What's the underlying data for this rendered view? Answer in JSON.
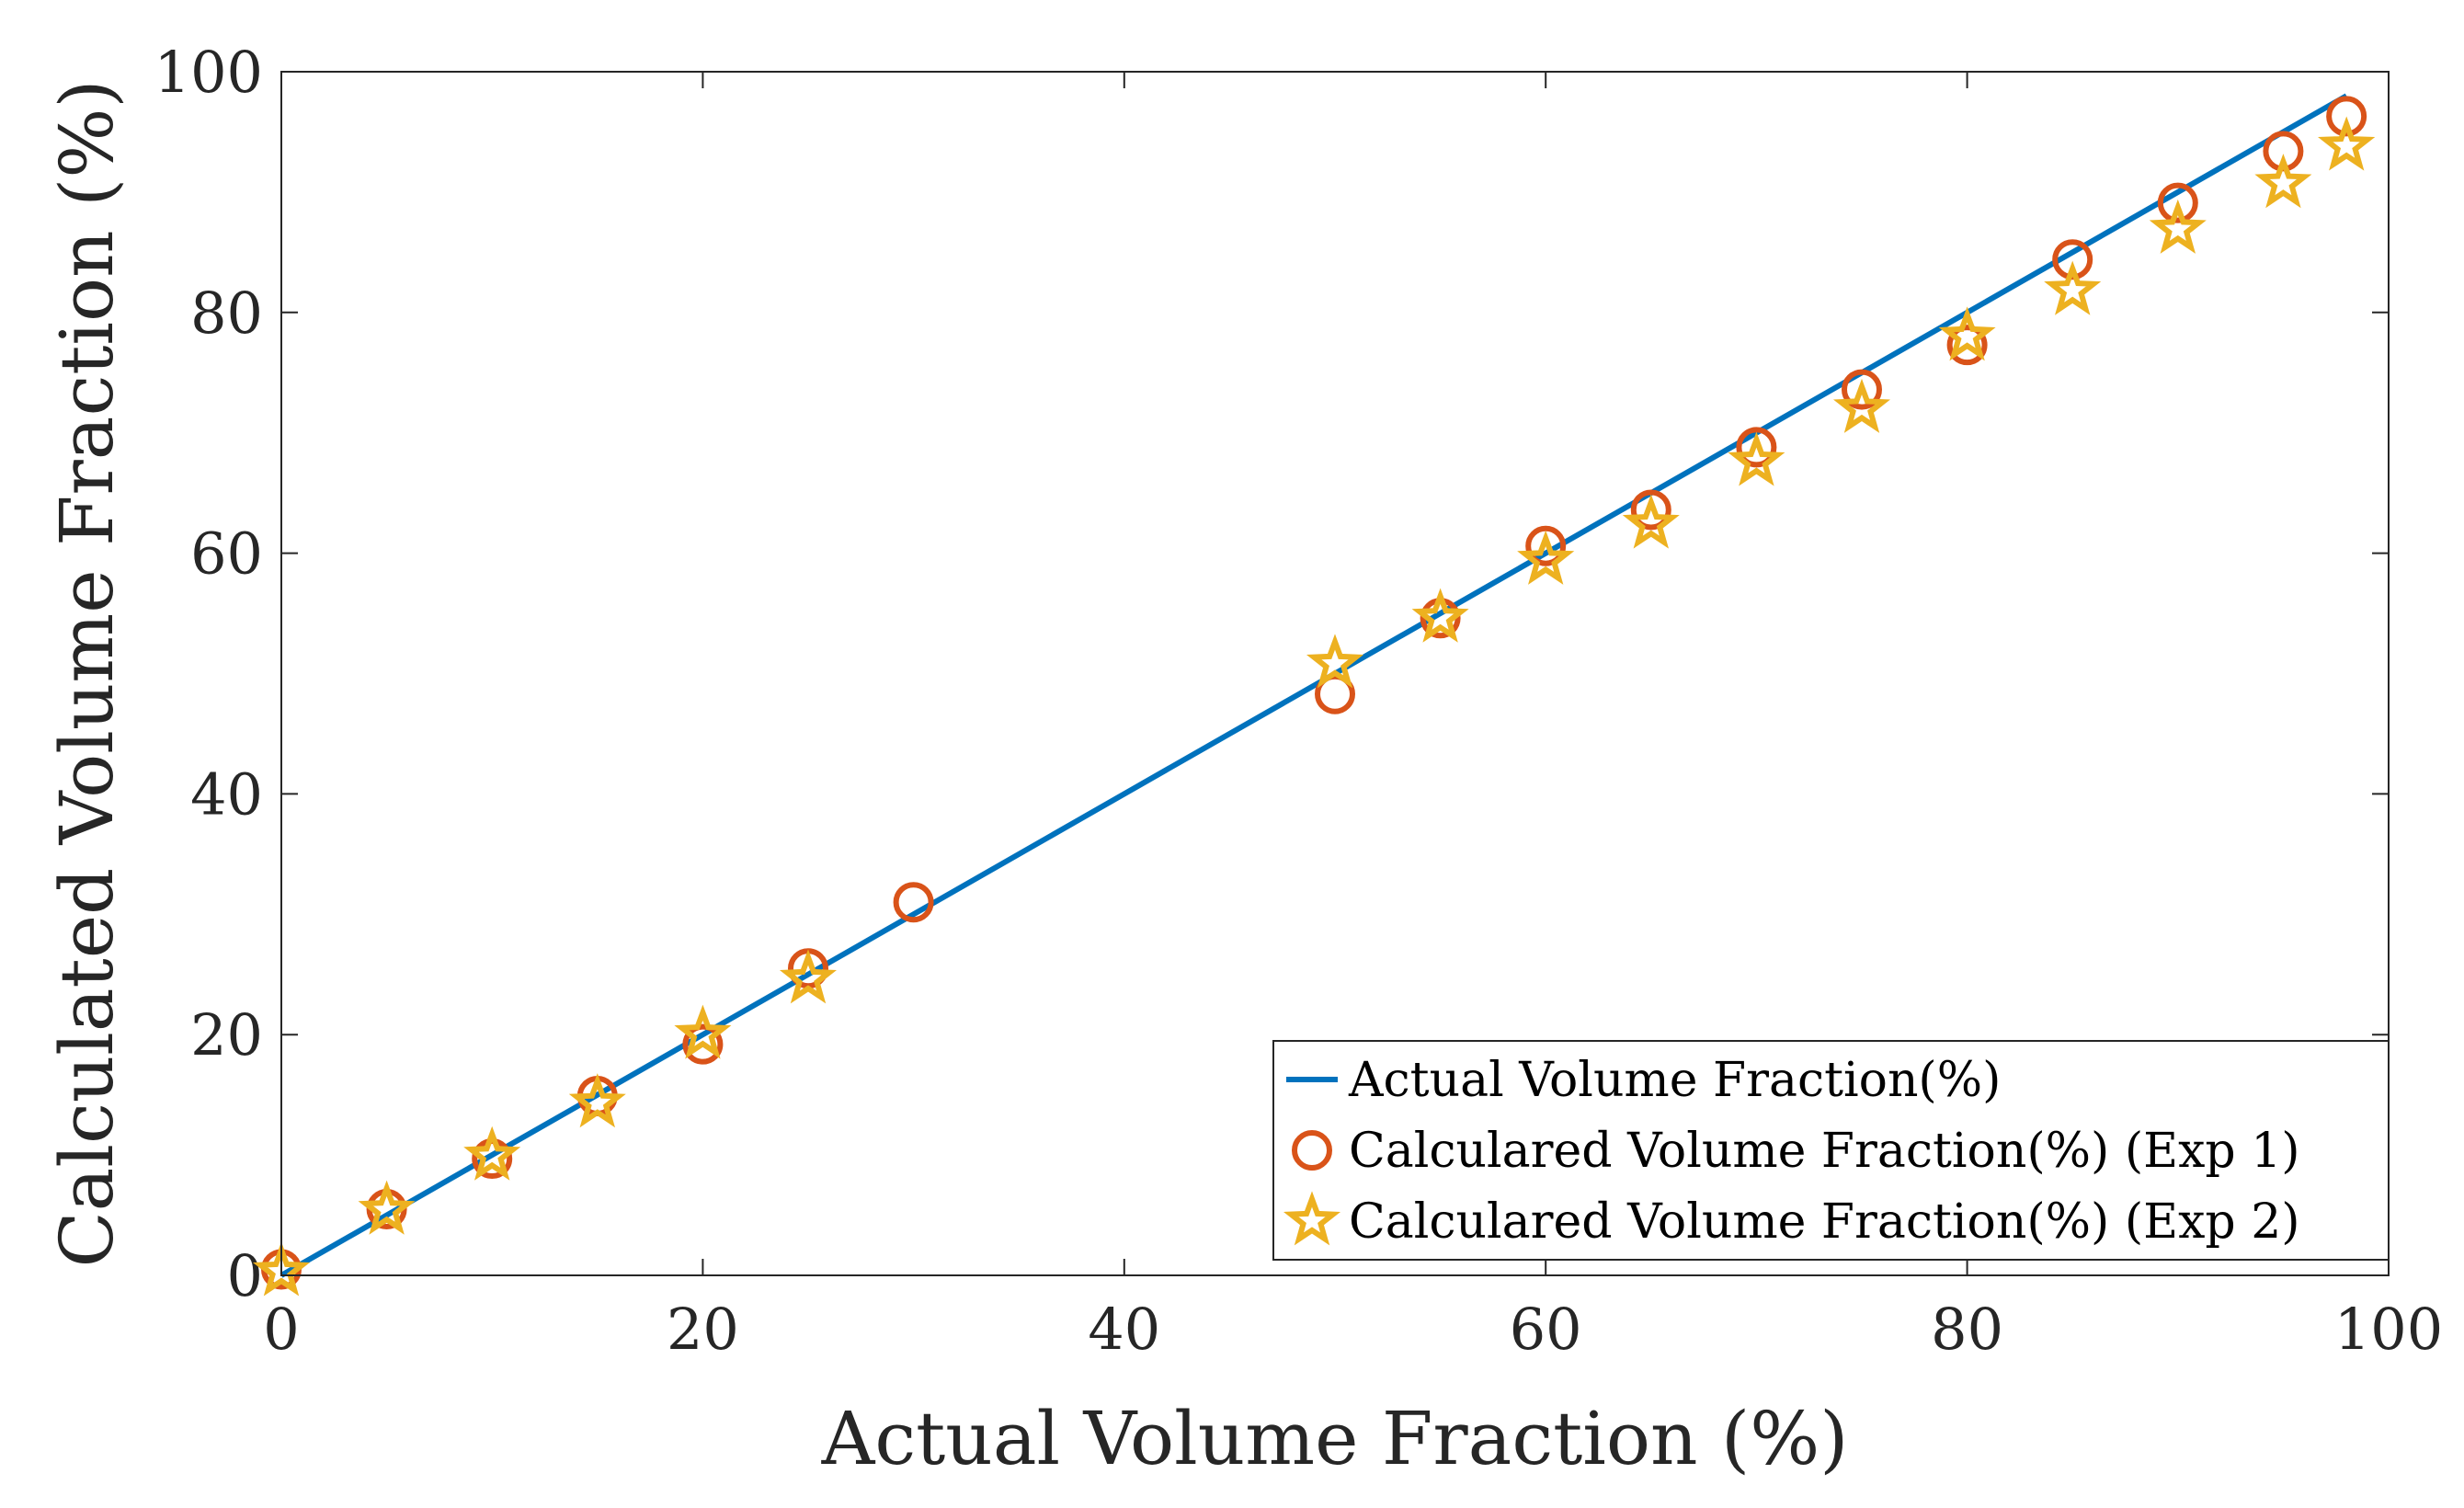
{
  "chart_data": {
    "type": "scatter",
    "title": "",
    "xlabel": "Actual Volume Fraction (%)",
    "ylabel": "Calculated Volume Fraction (%)",
    "xlim": [
      0,
      100
    ],
    "ylim": [
      0,
      100
    ],
    "xticks": [
      0,
      20,
      40,
      60,
      80,
      100
    ],
    "yticks": [
      0,
      20,
      40,
      60,
      80,
      100
    ],
    "grid": false,
    "legend_position": "bottom-right",
    "series": [
      {
        "name": "Actual Volume Fraction(%)",
        "kind": "line",
        "color": "#0072BD",
        "x": [
          0,
          98
        ],
        "y": [
          0,
          98
        ]
      },
      {
        "name": "Calculared Volume Fraction(%) (Exp 1)",
        "kind": "circle",
        "color": "#D95319",
        "x": [
          0,
          5,
          10,
          15,
          20,
          25,
          30,
          50,
          55,
          60,
          65,
          70,
          75,
          80,
          85,
          90,
          95,
          98
        ],
        "y": [
          0.5,
          5.5,
          9.7,
          14.9,
          19.2,
          25.5,
          31.0,
          48.3,
          54.6,
          60.6,
          63.6,
          68.8,
          73.6,
          77.3,
          84.4,
          89.1,
          93.4,
          96.3
        ]
      },
      {
        "name": "Calculared Volume Fraction(%) (Exp 2)",
        "kind": "star",
        "color": "#EDB120",
        "x": [
          0,
          5,
          10,
          15,
          20,
          25,
          50,
          55,
          60,
          65,
          70,
          75,
          80,
          85,
          90,
          95,
          98
        ],
        "y": [
          0.3,
          5.4,
          9.9,
          14.3,
          20.0,
          24.6,
          50.8,
          54.6,
          59.4,
          62.4,
          67.6,
          72.0,
          78.0,
          81.8,
          86.9,
          90.7,
          93.8
        ]
      }
    ]
  }
}
